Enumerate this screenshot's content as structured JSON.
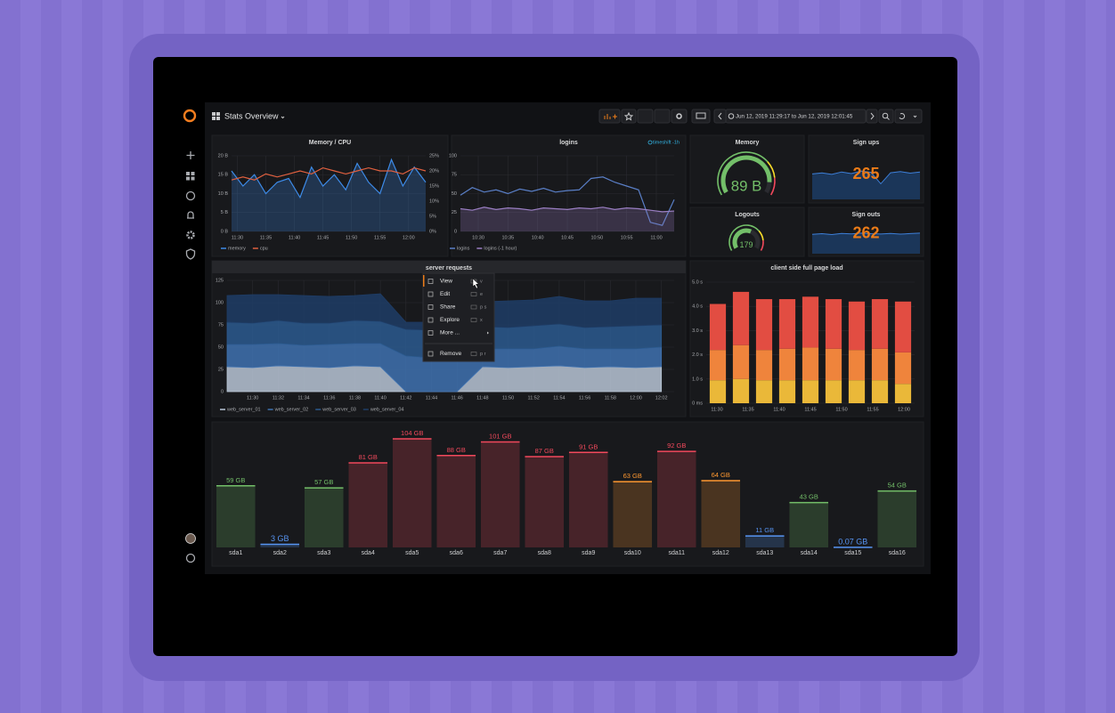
{
  "header": {
    "title": "Stats Overview",
    "time_range": "Jun 12, 2019 11:29:17 to Jun 12, 2019 12:01:45"
  },
  "panels": {
    "memory_cpu": {
      "title": "Memory / CPU",
      "type": "line",
      "x": [
        689,
        691,
        693,
        695,
        697,
        699,
        701,
        703,
        705,
        707,
        709,
        711,
        713,
        715,
        717,
        719,
        721,
        723
      ],
      "xlim": [
        689,
        723
      ],
      "xticks": [
        {
          "value": 690,
          "label": "11:30"
        },
        {
          "value": 695,
          "label": "11:35"
        },
        {
          "value": 700,
          "label": "11:40"
        },
        {
          "value": 705,
          "label": "11:45"
        },
        {
          "value": 710,
          "label": "11:50"
        },
        {
          "value": 715,
          "label": "11:55"
        },
        {
          "value": 720,
          "label": "12:00"
        }
      ],
      "ylim": [
        0,
        20
      ],
      "yticks": [
        {
          "value": 0,
          "label": "0 B"
        },
        {
          "value": 5,
          "label": "5 B"
        },
        {
          "value": 10,
          "label": "10 B"
        },
        {
          "value": 15,
          "label": "15 B"
        },
        {
          "value": 20,
          "label": "20 B"
        }
      ],
      "y2lim": [
        0,
        25
      ],
      "y2ticks": [
        {
          "value": 0,
          "label": "0%"
        },
        {
          "value": 5,
          "label": "5%"
        },
        {
          "value": 10,
          "label": "10%"
        },
        {
          "value": 15,
          "label": "15%"
        },
        {
          "value": 20,
          "label": "20%"
        },
        {
          "value": 25,
          "label": "25%"
        }
      ],
      "grid": true,
      "series": [
        {
          "name": "memory",
          "color": "#3d8be8",
          "fill": true,
          "values": [
            16,
            12,
            15,
            10,
            13,
            14,
            9,
            17,
            12,
            15,
            11,
            18,
            13,
            10,
            19,
            12,
            17,
            13
          ]
        },
        {
          "name": "cpu",
          "color": "#e0603f",
          "axis": "y2",
          "values": [
            17,
            18,
            17,
            19,
            18,
            19,
            20,
            19,
            21,
            20,
            19,
            20,
            21,
            20,
            20,
            19,
            21,
            20
          ]
        }
      ]
    },
    "logins": {
      "title": "logins",
      "type": "line",
      "timeshift": "timeshift -1h",
      "x": [
        627,
        629,
        631,
        633,
        635,
        637,
        639,
        641,
        643,
        645,
        647,
        649,
        651,
        653,
        655,
        657,
        659,
        661,
        663
      ],
      "xlim": [
        627,
        663
      ],
      "xticks": [
        {
          "value": 630,
          "label": "10:30"
        },
        {
          "value": 635,
          "label": "10:35"
        },
        {
          "value": 640,
          "label": "10:40"
        },
        {
          "value": 645,
          "label": "10:45"
        },
        {
          "value": 650,
          "label": "10:50"
        },
        {
          "value": 655,
          "label": "10:55"
        },
        {
          "value": 660,
          "label": "11:00"
        }
      ],
      "ylim": [
        0,
        100
      ],
      "yticks": [
        0,
        25,
        50,
        75,
        100
      ],
      "grid": true,
      "series": [
        {
          "name": "logins",
          "color": "#5a7fc7",
          "values": [
            48,
            58,
            52,
            55,
            50,
            56,
            53,
            57,
            52,
            54,
            55,
            70,
            72,
            65,
            60,
            55,
            12,
            8,
            42
          ]
        },
        {
          "name": "logins (-1 hour)",
          "color": "#9b7fc4",
          "fill": true,
          "values": [
            30,
            28,
            32,
            29,
            31,
            30,
            28,
            31,
            30,
            29,
            31,
            30,
            32,
            29,
            31,
            30,
            28,
            26,
            27
          ]
        }
      ]
    },
    "memory": {
      "title": "Memory",
      "type": "gauge",
      "value": 89,
      "value_label": "89 B",
      "range": [
        0,
        100
      ],
      "color": "#73bf69"
    },
    "signups": {
      "title": "Sign ups",
      "type": "stat",
      "value": 265,
      "color": "#eb7b18",
      "ylim": [
        100,
        300
      ],
      "sparkline": [
        230,
        235,
        228,
        240,
        232,
        245,
        238,
        180,
        236,
        242,
        234,
        240
      ]
    },
    "logouts": {
      "title": "Logouts",
      "type": "gauge",
      "value": 179,
      "range": [
        0,
        300
      ],
      "color": "#73bf69"
    },
    "signouts": {
      "title": "Sign outs",
      "type": "stat",
      "value": 262,
      "color": "#eb7b18",
      "ylim": [
        100,
        300
      ],
      "sparkline": [
        232,
        236,
        230,
        238,
        235,
        240,
        236,
        234,
        238,
        233,
        237,
        240
      ]
    },
    "server_requests": {
      "title": "server requests",
      "type": "stacked-area",
      "x": [
        688,
        690,
        692,
        694,
        696,
        698,
        700,
        702,
        704,
        706,
        708,
        710,
        712,
        714,
        716,
        718,
        720,
        722
      ],
      "xlim": [
        688,
        723
      ],
      "xticks": [
        {
          "value": 690,
          "label": "11:30"
        },
        {
          "value": 692,
          "label": "11:32"
        },
        {
          "value": 694,
          "label": "11:34"
        },
        {
          "value": 696,
          "label": "11:36"
        },
        {
          "value": 698,
          "label": "11:38"
        },
        {
          "value": 700,
          "label": "11:40"
        },
        {
          "value": 702,
          "label": "11:42"
        },
        {
          "value": 704,
          "label": "11:44"
        },
        {
          "value": 706,
          "label": "11:46"
        },
        {
          "value": 708,
          "label": "11:48"
        },
        {
          "value": 710,
          "label": "11:50"
        },
        {
          "value": 712,
          "label": "11:52"
        },
        {
          "value": 714,
          "label": "11:54"
        },
        {
          "value": 716,
          "label": "11:56"
        },
        {
          "value": 718,
          "label": "11:58"
        },
        {
          "value": 720,
          "label": "12:00"
        },
        {
          "value": 722,
          "label": "12:02"
        }
      ],
      "ylim": [
        0,
        125
      ],
      "yticks": [
        0,
        25,
        50,
        75,
        100,
        125
      ],
      "grid": true,
      "series": [
        {
          "name": "web_server_01",
          "color": "#b9c6d6",
          "values": [
            28,
            27,
            29,
            28,
            27,
            29,
            28,
            0,
            0,
            0,
            28,
            27,
            28,
            29,
            27,
            28,
            27,
            28
          ]
        },
        {
          "name": "web_server_02",
          "color": "#3f72b0",
          "values": [
            25,
            26,
            25,
            24,
            26,
            25,
            26,
            40,
            38,
            39,
            20,
            21,
            20,
            22,
            21,
            20,
            21,
            22
          ]
        },
        {
          "name": "web_server_03",
          "color": "#2c5a8f",
          "values": [
            25,
            24,
            26,
            25,
            24,
            26,
            25,
            30,
            31,
            30,
            25,
            24,
            26,
            25,
            24,
            25,
            26,
            25
          ]
        },
        {
          "name": "web_server_04",
          "color": "#1f3d66",
          "values": [
            30,
            32,
            29,
            31,
            30,
            28,
            31,
            8,
            9,
            7,
            28,
            30,
            29,
            31,
            30,
            29,
            31,
            30
          ]
        }
      ]
    },
    "page_load": {
      "title": "client side full page load",
      "type": "stacked-bar",
      "xtick_labels": [
        "11:30",
        "11:35",
        "11:40",
        "11:45",
        "11:50",
        "11:55",
        "12:00"
      ],
      "ylim": [
        0,
        5
      ],
      "yticks": [
        {
          "value": 0,
          "label": "0 ms"
        },
        {
          "value": 1,
          "label": "1.0 s"
        },
        {
          "value": 2,
          "label": "2.0 s"
        },
        {
          "value": 3,
          "label": "3.0 s"
        },
        {
          "value": 4,
          "label": "4.0 s"
        },
        {
          "value": 5,
          "label": "5.0 s"
        }
      ],
      "grid": true,
      "series": [
        {
          "color": "#eab839",
          "values": [
            0.95,
            1.0,
            0.95,
            0.95,
            0.95,
            0.95,
            0.95,
            0.95,
            0.8
          ]
        },
        {
          "color": "#ef843c",
          "values": [
            1.25,
            1.4,
            1.25,
            1.3,
            1.35,
            1.3,
            1.25,
            1.3,
            1.3
          ]
        },
        {
          "color": "#e24d42",
          "values": [
            1.9,
            2.2,
            2.1,
            2.05,
            2.1,
            2.05,
            2.0,
            2.05,
            2.1
          ]
        }
      ]
    },
    "disks": {
      "type": "bar",
      "categories": [
        "sda1",
        "sda2",
        "sda3",
        "sda4",
        "sda5",
        "sda6",
        "sda7",
        "sda8",
        "sda9",
        "sda10",
        "sda11",
        "sda12",
        "sda13",
        "sda14",
        "sda15",
        "sda16"
      ],
      "values": [
        59,
        3,
        57,
        81,
        104,
        88,
        101,
        87,
        91,
        63,
        92,
        64,
        11,
        43,
        0.07,
        54
      ],
      "value_labels": [
        "59 GB",
        "3 GB",
        "57 GB",
        "81 GB",
        "104 GB",
        "88 GB",
        "101 GB",
        "87 GB",
        "91 GB",
        "63 GB",
        "92 GB",
        "64 GB",
        "11 GB",
        "43 GB",
        "0.07 GB",
        "54 GB"
      ],
      "colors": [
        "#73bf69",
        "#5794f2",
        "#73bf69",
        "#f2495c",
        "#f2495c",
        "#f2495c",
        "#f2495c",
        "#f2495c",
        "#f2495c",
        "#ff9830",
        "#f2495c",
        "#ff9830",
        "#5794f2",
        "#73bf69",
        "#5794f2",
        "#73bf69"
      ],
      "ylim": [
        0,
        110
      ]
    }
  },
  "context_menu": {
    "items": [
      {
        "label": "View",
        "shortcut": "v"
      },
      {
        "label": "Edit",
        "shortcut": "e"
      },
      {
        "label": "Share",
        "shortcut": "p s"
      },
      {
        "label": "Explore",
        "shortcut": "x"
      },
      {
        "label": "More ..."
      },
      {
        "label": "Remove",
        "shortcut": "p r"
      }
    ]
  }
}
